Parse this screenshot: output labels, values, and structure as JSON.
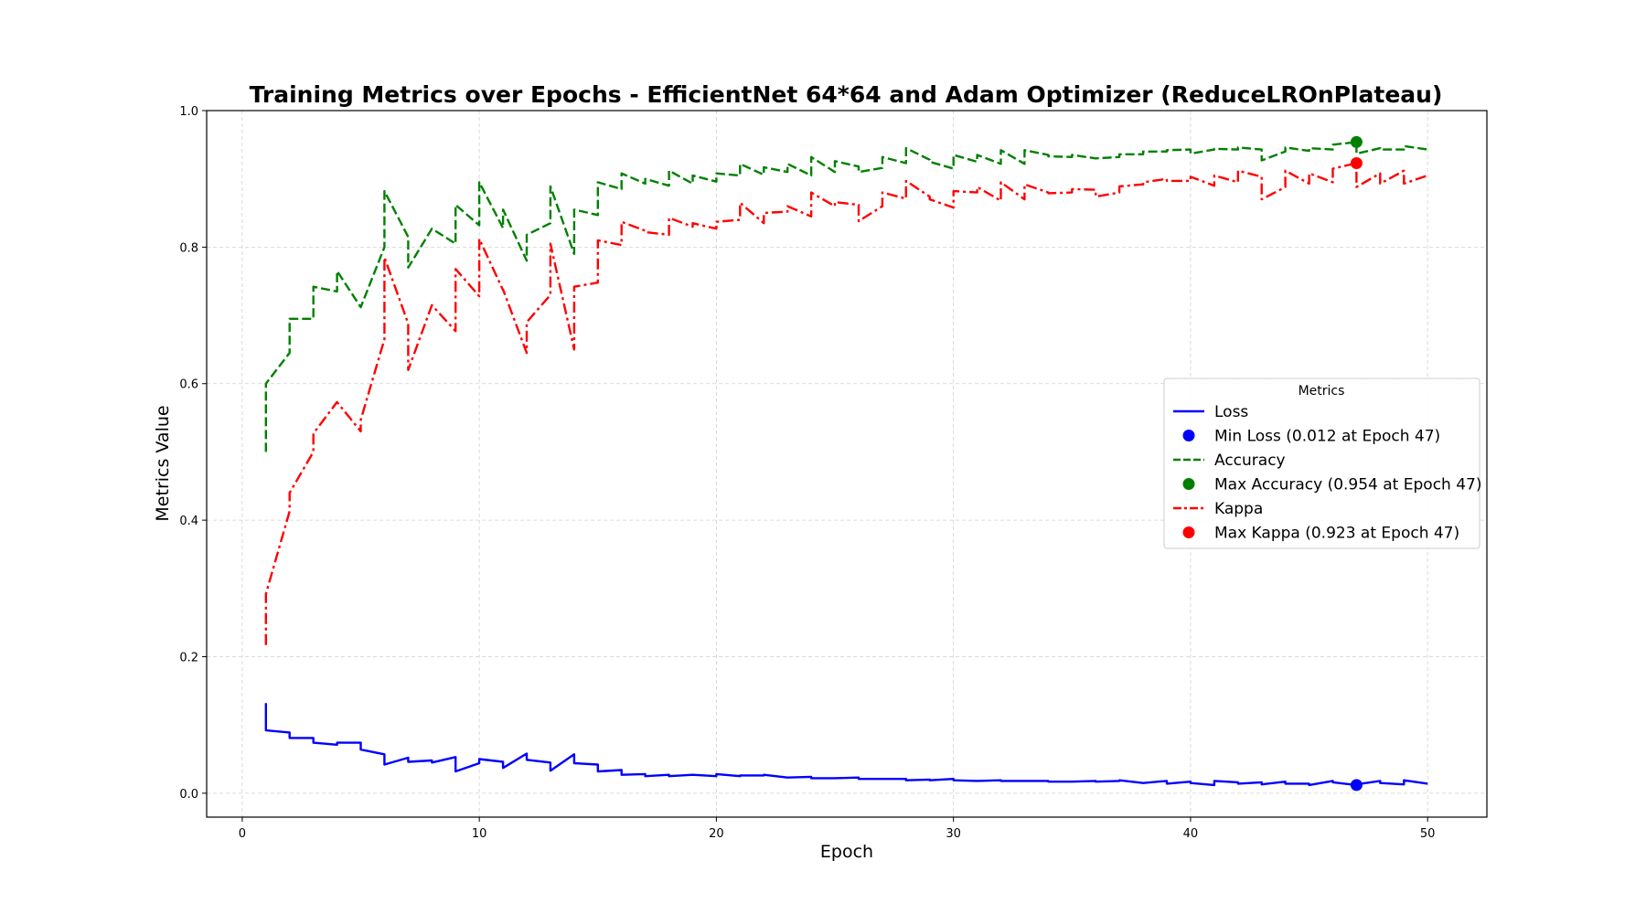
{
  "chart_data": {
    "type": "line",
    "title": "Training Metrics over Epochs - EfficientNet 64*64 and Adam Optimizer (ReduceLROnPlateau)",
    "xlabel": "Epoch",
    "ylabel": "Metrics Value",
    "xlim": [
      -1.5,
      52.5
    ],
    "ylim": [
      -0.035,
      1.0
    ],
    "xticks": [
      0,
      10,
      20,
      30,
      40,
      50
    ],
    "xtick_labels": [
      "0",
      "10",
      "20",
      "30",
      "40",
      "50"
    ],
    "yticks": [
      0.0,
      0.2,
      0.4,
      0.6,
      0.8,
      1.0
    ],
    "ytick_labels": [
      "0.0",
      "0.2",
      "0.4",
      "0.6",
      "0.8",
      "1.0"
    ],
    "grid": true,
    "legend": {
      "title": "Metrics",
      "placement": "center-right"
    },
    "series": [
      {
        "name": "Loss",
        "color": "#0000ff",
        "style": "solid",
        "x": [
          1,
          1,
          2,
          2,
          3,
          3,
          4,
          4,
          5,
          5,
          6,
          6,
          7,
          7,
          8,
          8,
          9,
          9,
          10,
          10,
          11,
          11,
          12,
          12,
          13,
          13,
          14,
          14,
          15,
          15,
          16,
          16,
          17,
          17,
          18,
          18,
          19,
          19,
          20,
          20,
          21,
          21,
          22,
          22,
          23,
          23,
          24,
          24,
          25,
          25,
          26,
          26,
          27,
          27,
          28,
          28,
          29,
          29,
          30,
          30,
          31,
          31,
          32,
          32,
          33,
          33,
          34,
          34,
          35,
          35,
          36,
          36,
          37,
          37,
          38,
          38,
          39,
          39,
          40,
          40,
          41,
          41,
          42,
          42,
          43,
          43,
          44,
          44,
          45,
          45,
          46,
          46,
          47,
          47,
          48,
          48,
          49,
          49,
          50
        ],
        "y": [
          0.132,
          0.092,
          0.089,
          0.081,
          0.081,
          0.074,
          0.071,
          0.074,
          0.074,
          0.064,
          0.057,
          0.042,
          0.052,
          0.046,
          0.048,
          0.045,
          0.053,
          0.032,
          0.044,
          0.05,
          0.046,
          0.037,
          0.058,
          0.049,
          0.045,
          0.033,
          0.057,
          0.044,
          0.042,
          0.032,
          0.034,
          0.027,
          0.028,
          0.025,
          0.027,
          0.025,
          0.027,
          0.027,
          0.025,
          0.028,
          0.025,
          0.026,
          0.026,
          0.027,
          0.023,
          0.023,
          0.024,
          0.022,
          0.022,
          0.022,
          0.023,
          0.021,
          0.021,
          0.021,
          0.021,
          0.019,
          0.02,
          0.019,
          0.021,
          0.019,
          0.018,
          0.018,
          0.019,
          0.018,
          0.018,
          0.018,
          0.018,
          0.017,
          0.017,
          0.017,
          0.018,
          0.017,
          0.018,
          0.019,
          0.015,
          0.015,
          0.018,
          0.014,
          0.017,
          0.015,
          0.012,
          0.018,
          0.016,
          0.014,
          0.016,
          0.013,
          0.017,
          0.014,
          0.014,
          0.012,
          0.018,
          0.016,
          0.012,
          0.013,
          0.018,
          0.015,
          0.013,
          0.019,
          0.014
        ]
      },
      {
        "name": "Accuracy",
        "color": "#008000",
        "style": "dashed",
        "x": [
          1,
          1,
          2,
          2,
          3,
          3,
          4,
          4,
          5,
          6,
          6,
          7,
          7,
          8,
          9,
          9,
          10,
          10,
          11,
          11,
          12,
          12,
          13,
          13,
          14,
          14,
          15,
          15,
          16,
          16,
          17,
          17,
          18,
          18,
          19,
          19,
          20,
          20,
          21,
          21,
          22,
          22,
          23,
          23,
          24,
          24,
          25,
          25,
          26,
          26,
          27,
          27,
          28,
          28,
          29,
          29,
          30,
          30,
          31,
          31,
          32,
          32,
          33,
          33,
          34,
          34,
          35,
          35,
          36,
          36,
          37,
          37,
          38,
          38,
          39,
          39,
          40,
          40,
          41,
          41,
          42,
          42,
          43,
          43,
          44,
          44,
          45,
          45,
          46,
          46,
          47,
          47,
          48,
          48,
          49,
          49,
          50
        ],
        "y": [
          0.5,
          0.6,
          0.645,
          0.695,
          0.695,
          0.742,
          0.735,
          0.765,
          0.712,
          0.8,
          0.882,
          0.815,
          0.77,
          0.827,
          0.805,
          0.862,
          0.832,
          0.895,
          0.828,
          0.855,
          0.78,
          0.818,
          0.835,
          0.889,
          0.79,
          0.855,
          0.847,
          0.895,
          0.885,
          0.908,
          0.893,
          0.9,
          0.89,
          0.912,
          0.893,
          0.905,
          0.896,
          0.908,
          0.905,
          0.922,
          0.906,
          0.917,
          0.91,
          0.922,
          0.905,
          0.932,
          0.91,
          0.926,
          0.918,
          0.91,
          0.916,
          0.932,
          0.923,
          0.945,
          0.928,
          0.925,
          0.915,
          0.935,
          0.925,
          0.935,
          0.922,
          0.942,
          0.922,
          0.942,
          0.935,
          0.933,
          0.932,
          0.935,
          0.93,
          0.93,
          0.932,
          0.936,
          0.936,
          0.94,
          0.94,
          0.942,
          0.943,
          0.937,
          0.943,
          0.944,
          0.943,
          0.946,
          0.943,
          0.927,
          0.94,
          0.946,
          0.941,
          0.945,
          0.943,
          0.95,
          0.954,
          0.937,
          0.945,
          0.943,
          0.943,
          0.948,
          0.943
        ]
      },
      {
        "name": "Kappa",
        "color": "#ff0000",
        "style": "dashdot",
        "x": [
          1,
          1,
          2,
          2,
          3,
          3,
          4,
          5,
          5,
          6,
          6,
          7,
          7,
          8,
          9,
          9,
          10,
          10,
          11,
          11,
          12,
          12,
          13,
          13,
          14,
          14,
          15,
          15,
          16,
          16,
          17,
          17,
          18,
          18,
          19,
          19,
          20,
          20,
          21,
          21,
          22,
          22,
          23,
          23,
          24,
          24,
          25,
          25,
          26,
          26,
          27,
          27,
          28,
          28,
          29,
          29,
          30,
          30,
          31,
          31,
          32,
          32,
          33,
          33,
          34,
          34,
          35,
          35,
          36,
          36,
          37,
          37,
          38,
          38,
          39,
          39,
          40,
          40,
          41,
          41,
          42,
          42,
          43,
          43,
          44,
          44,
          45,
          45,
          46,
          46,
          47,
          47,
          48,
          48,
          49,
          49,
          50
        ],
        "y": [
          0.217,
          0.292,
          0.413,
          0.44,
          0.5,
          0.527,
          0.573,
          0.53,
          0.547,
          0.665,
          0.785,
          0.688,
          0.62,
          0.715,
          0.677,
          0.768,
          0.728,
          0.812,
          0.737,
          0.738,
          0.645,
          0.69,
          0.73,
          0.805,
          0.65,
          0.742,
          0.748,
          0.81,
          0.803,
          0.837,
          0.824,
          0.822,
          0.818,
          0.843,
          0.83,
          0.835,
          0.827,
          0.837,
          0.84,
          0.865,
          0.835,
          0.85,
          0.852,
          0.86,
          0.845,
          0.88,
          0.86,
          0.866,
          0.862,
          0.838,
          0.86,
          0.88,
          0.871,
          0.897,
          0.874,
          0.87,
          0.858,
          0.882,
          0.88,
          0.888,
          0.868,
          0.895,
          0.87,
          0.892,
          0.88,
          0.879,
          0.88,
          0.885,
          0.884,
          0.874,
          0.88,
          0.889,
          0.892,
          0.895,
          0.9,
          0.897,
          0.897,
          0.903,
          0.89,
          0.905,
          0.895,
          0.912,
          0.903,
          0.87,
          0.888,
          0.912,
          0.893,
          0.908,
          0.895,
          0.915,
          0.923,
          0.888,
          0.908,
          0.893,
          0.912,
          0.893,
          0.905
        ]
      }
    ],
    "markers": [
      {
        "name": "Min Loss (0.012 at Epoch 47)",
        "x": 47,
        "y": 0.012,
        "color": "#0000ff"
      },
      {
        "name": "Max Accuracy (0.954 at Epoch 47)",
        "x": 47,
        "y": 0.954,
        "color": "#008000"
      },
      {
        "name": "Max Kappa (0.923 at Epoch 47)",
        "x": 47,
        "y": 0.923,
        "color": "#ff0000"
      }
    ]
  }
}
